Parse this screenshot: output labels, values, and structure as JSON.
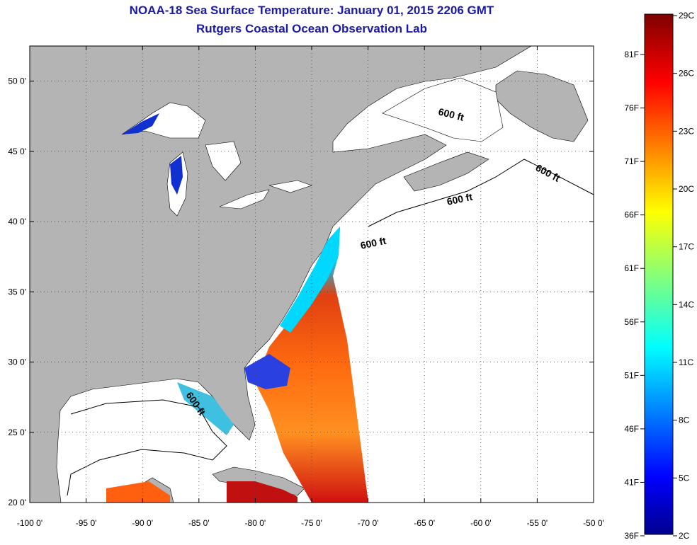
{
  "title": "NOAA-18 Sea Surface Temperature:  January 01, 2015 2206 GMT",
  "subtitle": "Rutgers Coastal Ocean Observation Lab",
  "map": {
    "lon_range": [
      -100,
      -50
    ],
    "lat_range": [
      20,
      52.5
    ],
    "x_ticks": [
      "-100 0'",
      "-95 0'",
      "-90 0'",
      "-85 0'",
      "-80 0'",
      "-75 0'",
      "-70 0'",
      "-65 0'",
      "-60 0'",
      "-55 0'",
      "-50 0'"
    ],
    "y_ticks": [
      "50 0'",
      "45 0'",
      "40 0'",
      "35 0'",
      "30 0'",
      "25 0'",
      "20 0'"
    ],
    "grid": "dotted",
    "depth_labels": [
      "600 ft",
      "600 ft",
      "600 ft",
      "600 ft",
      "600 ft"
    ],
    "land_color": "#b4b4b4",
    "no_data_color": "#ffffff"
  },
  "colorbar": {
    "celsius_labels": [
      "29C",
      "26C",
      "23C",
      "20C",
      "17C",
      "14C",
      "11C",
      "8C",
      "5C",
      "2C"
    ],
    "fahrenheit_labels": [
      "81F",
      "76F",
      "71F",
      "66F",
      "61F",
      "56F",
      "51F",
      "46F",
      "41F",
      "36F"
    ],
    "colors": [
      "#7f0000",
      "#ff0000",
      "#ff7f00",
      "#ffff00",
      "#7fff7f",
      "#00ffff",
      "#007fff",
      "#0000ff",
      "#00008f"
    ]
  }
}
